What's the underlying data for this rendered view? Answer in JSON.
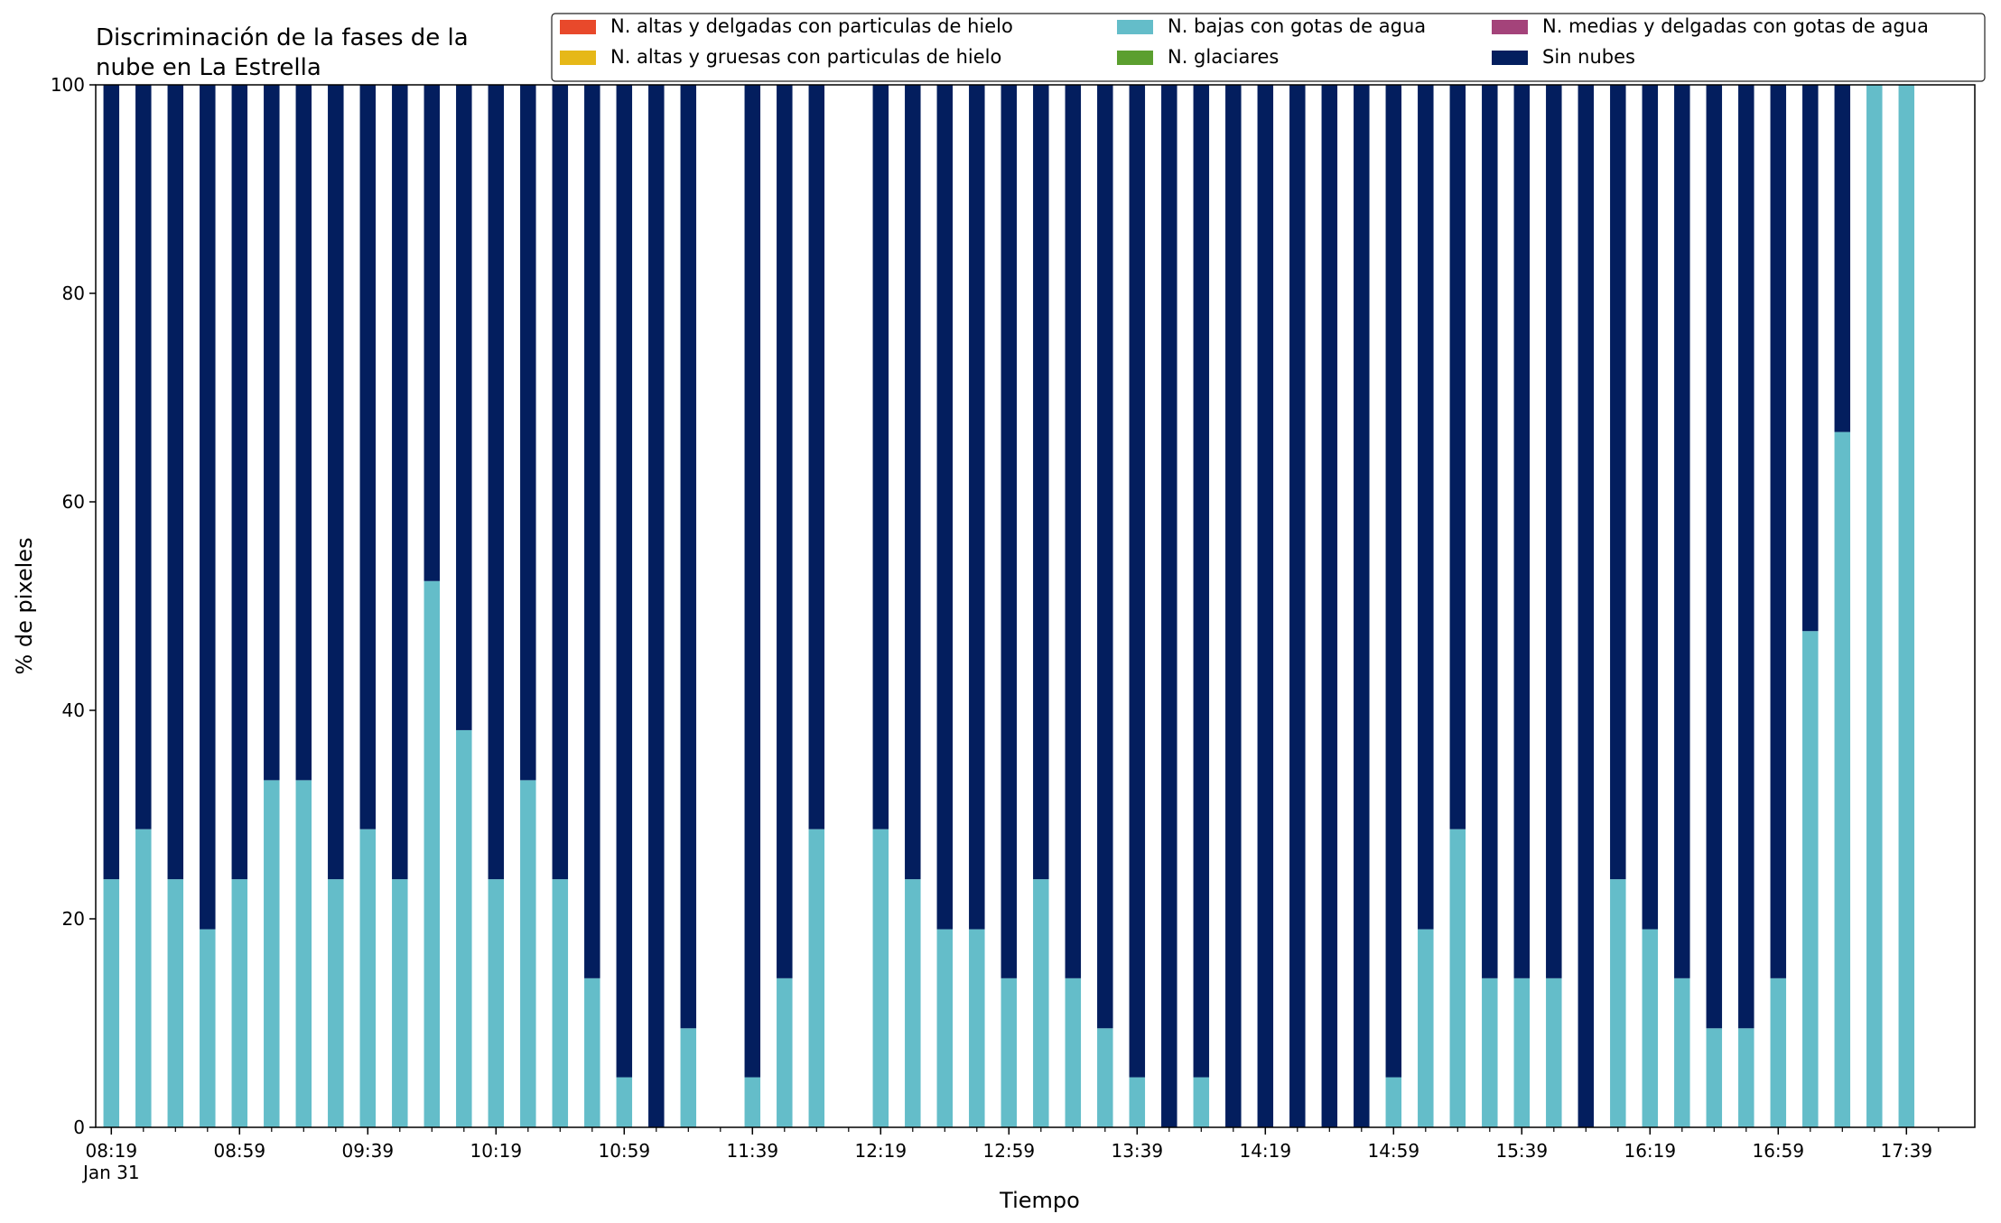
{
  "chart_data": {
    "type": "bar",
    "stacked": true,
    "title": "Discriminación de la fases de la\nnube en La Estrella",
    "xlabel": "Tiempo",
    "ylabel": "% de pixeles",
    "ylim": [
      0,
      100
    ],
    "yticks": [
      0,
      20,
      40,
      60,
      80,
      100
    ],
    "legend": {
      "placement": "top-right",
      "entries": [
        {
          "name": "N. altas y delgadas con particulas de hielo",
          "color": "#e8492b"
        },
        {
          "name": "N. altas y gruesas con particulas de hielo",
          "color": "#e6b818"
        },
        {
          "name": "N. bajas con gotas de agua",
          "color": "#64bdc9"
        },
        {
          "name": "N. glaciares",
          "color": "#5b9f2f"
        },
        {
          "name": "N. medias y delgadas con gotas de agua",
          "color": "#a4437a"
        },
        {
          "name": "Sin nubes",
          "color": "#031e5e"
        }
      ]
    },
    "x_tick_labels": [
      {
        "slot": 0,
        "label": "08:19",
        "sub": "Jan 31"
      },
      {
        "slot": 4,
        "label": "08:59"
      },
      {
        "slot": 8,
        "label": "09:39"
      },
      {
        "slot": 12,
        "label": "10:19"
      },
      {
        "slot": 16,
        "label": "10:59"
      },
      {
        "slot": 20,
        "label": "11:39"
      },
      {
        "slot": 24,
        "label": "12:19"
      },
      {
        "slot": 28,
        "label": "12:59"
      },
      {
        "slot": 32,
        "label": "13:39"
      },
      {
        "slot": 36,
        "label": "14:19"
      },
      {
        "slot": 40,
        "label": "14:59"
      },
      {
        "slot": 44,
        "label": "15:39"
      },
      {
        "slot": 48,
        "label": "16:19"
      },
      {
        "slot": 52,
        "label": "16:59"
      },
      {
        "slot": 56,
        "label": "17:39"
      }
    ],
    "categories": [
      "08:19",
      "08:29",
      "08:39",
      "08:49",
      "08:59",
      "09:09",
      "09:19",
      "09:29",
      "09:39",
      "09:49",
      "09:59",
      "10:09",
      "10:19",
      "10:29",
      "10:39",
      "10:49",
      "10:59",
      "11:09",
      "11:19",
      "11:29",
      "11:39",
      "11:49",
      "11:59",
      "12:09",
      "12:19",
      "12:29",
      "12:39",
      "12:49",
      "12:59",
      "13:09",
      "13:19",
      "13:29",
      "13:39",
      "13:49",
      "13:59",
      "14:09",
      "14:19",
      "14:29",
      "14:39",
      "14:49",
      "14:59",
      "15:09",
      "15:19",
      "15:29",
      "15:39",
      "15:49",
      "15:59",
      "16:09",
      "16:19",
      "16:29",
      "16:39",
      "16:49",
      "16:59",
      "17:09",
      "17:19",
      "17:29",
      "17:39",
      "17:49"
    ],
    "series": [
      {
        "name": "N. altas y delgadas con particulas de hielo",
        "color": "#e8492b",
        "values": [
          0,
          0,
          0,
          0,
          0,
          0,
          0,
          0,
          0,
          0,
          0,
          0,
          0,
          0,
          0,
          0,
          0,
          0,
          0,
          0,
          0,
          0,
          0,
          0,
          0,
          0,
          0,
          0,
          0,
          0,
          0,
          0,
          0,
          0,
          0,
          0,
          0,
          0,
          0,
          0,
          0,
          0,
          0,
          0,
          0,
          0,
          0,
          0,
          0,
          0,
          0,
          0,
          0,
          0,
          0,
          0,
          0,
          0
        ]
      },
      {
        "name": "N. altas y gruesas con particulas de hielo",
        "color": "#e6b818",
        "values": [
          0,
          0,
          0,
          0,
          0,
          0,
          0,
          0,
          0,
          0,
          0,
          0,
          0,
          0,
          0,
          0,
          0,
          0,
          0,
          0,
          0,
          0,
          0,
          0,
          0,
          0,
          0,
          0,
          0,
          0,
          0,
          0,
          0,
          0,
          0,
          0,
          0,
          0,
          0,
          0,
          0,
          0,
          0,
          0,
          0,
          0,
          0,
          0,
          0,
          0,
          0,
          0,
          0,
          0,
          0,
          0,
          0,
          0
        ]
      },
      {
        "name": "N. bajas con gotas de agua",
        "color": "#64bdc9",
        "values": [
          23.8,
          28.6,
          23.8,
          19.0,
          23.8,
          33.3,
          33.3,
          23.8,
          28.6,
          23.8,
          52.4,
          38.1,
          23.8,
          33.3,
          23.8,
          14.3,
          4.8,
          0,
          9.5,
          null,
          4.8,
          14.3,
          28.6,
          null,
          28.6,
          23.8,
          19.0,
          19.0,
          14.3,
          23.8,
          14.3,
          9.5,
          4.8,
          0,
          4.8,
          0,
          0,
          0,
          0,
          0,
          4.8,
          19.0,
          28.6,
          14.3,
          14.3,
          14.3,
          0,
          23.8,
          19.0,
          14.3,
          9.5,
          9.5,
          14.3,
          47.6,
          66.7,
          100,
          100,
          null
        ]
      },
      {
        "name": "N. glaciares",
        "color": "#5b9f2f",
        "values": [
          0,
          0,
          0,
          0,
          0,
          0,
          0,
          0,
          0,
          0,
          0,
          0,
          0,
          0,
          0,
          0,
          0,
          0,
          0,
          0,
          0,
          0,
          0,
          0,
          0,
          0,
          0,
          0,
          0,
          0,
          0,
          0,
          0,
          0,
          0,
          0,
          0,
          0,
          0,
          0,
          0,
          0,
          0,
          0,
          0,
          0,
          0,
          0,
          0,
          0,
          0,
          0,
          0,
          0,
          0,
          0,
          0,
          0
        ]
      },
      {
        "name": "N. medias y delgadas con gotas de agua",
        "color": "#a4437a",
        "values": [
          0,
          0,
          0,
          0,
          0,
          0,
          0,
          0,
          0,
          0,
          0,
          0,
          0,
          0,
          0,
          0,
          0,
          0,
          0,
          0,
          0,
          0,
          0,
          0,
          0,
          0,
          0,
          0,
          0,
          0,
          0,
          0,
          0,
          0,
          0,
          0,
          0,
          0,
          0,
          0,
          0,
          0,
          0,
          0,
          0,
          0,
          0,
          0,
          0,
          0,
          0,
          0,
          0,
          0,
          0,
          0,
          0,
          0
        ]
      },
      {
        "name": "Sin nubes",
        "color": "#031e5e",
        "values": [
          76.2,
          71.4,
          76.2,
          81.0,
          76.2,
          66.7,
          66.7,
          76.2,
          71.4,
          76.2,
          47.6,
          61.9,
          76.2,
          66.7,
          76.2,
          85.7,
          95.2,
          100,
          90.5,
          null,
          95.2,
          85.7,
          71.4,
          null,
          71.4,
          76.2,
          81.0,
          81.0,
          85.7,
          76.2,
          85.7,
          90.5,
          95.2,
          100,
          95.2,
          100,
          100,
          100,
          100,
          100,
          95.2,
          81.0,
          71.4,
          85.7,
          85.7,
          85.7,
          100,
          76.2,
          81.0,
          85.7,
          90.5,
          90.5,
          85.7,
          52.4,
          33.3,
          0,
          0,
          null
        ]
      }
    ]
  }
}
